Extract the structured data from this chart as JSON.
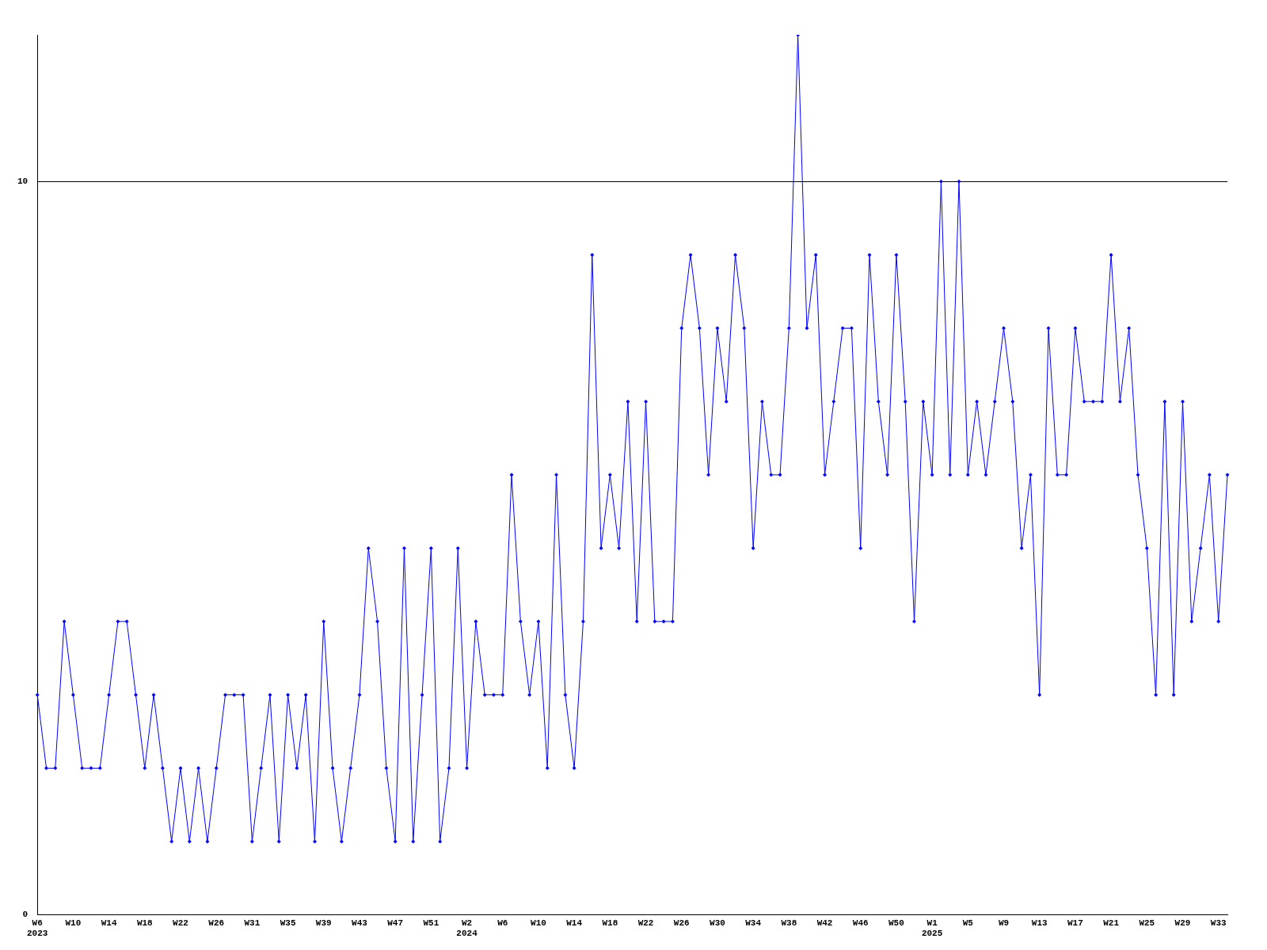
{
  "chart_data": {
    "type": "line",
    "categories": [
      "W6\n2023",
      null,
      null,
      null,
      "W10",
      null,
      null,
      null,
      "W14",
      null,
      null,
      null,
      "W18",
      null,
      null,
      null,
      "W22",
      null,
      null,
      null,
      "W26",
      null,
      null,
      null,
      "W31",
      null,
      null,
      null,
      "W35",
      null,
      null,
      null,
      "W39",
      null,
      null,
      null,
      "W43",
      null,
      null,
      null,
      "W47",
      null,
      null,
      null,
      "W51",
      null,
      null,
      null,
      "W2\n2024",
      null,
      null,
      null,
      "W6",
      null,
      null,
      null,
      "W10",
      null,
      null,
      null,
      "W14",
      null,
      null,
      null,
      "W18",
      null,
      null,
      null,
      "W22",
      null,
      null,
      null,
      "W26",
      null,
      null,
      null,
      "W30",
      null,
      null,
      null,
      "W34",
      null,
      null,
      null,
      "W38",
      null,
      null,
      null,
      "W42",
      null,
      null,
      null,
      "W46",
      null,
      null,
      null,
      "W50",
      null,
      null,
      null,
      "W1\n2025",
      null,
      null,
      null,
      "W5",
      null,
      null,
      null,
      "W9",
      null,
      null,
      null,
      "W13",
      null,
      null,
      null,
      "W17",
      null,
      null,
      null,
      "W21",
      null,
      null,
      null,
      "W25",
      null,
      null,
      null,
      "W29",
      null,
      null,
      null,
      "W33",
      null
    ],
    "series": [
      {
        "color": "#0000ff",
        "values": [
          3,
          2,
          2,
          4,
          3,
          2,
          2,
          2,
          3,
          4,
          4,
          3,
          2,
          3,
          2,
          1,
          2,
          1,
          2,
          1,
          2,
          3,
          3,
          3,
          1,
          2,
          3,
          1,
          3,
          2,
          3,
          1,
          4,
          2,
          1,
          2,
          3,
          5,
          4,
          2,
          1,
          5,
          1,
          3,
          5,
          1,
          2,
          5,
          2,
          4,
          3,
          3,
          3,
          6,
          4,
          3,
          4,
          2,
          6,
          3,
          2,
          4,
          9,
          5,
          6,
          5,
          7,
          4,
          7,
          4,
          4,
          4,
          8,
          9,
          8,
          6,
          8,
          7,
          9,
          8,
          5,
          7,
          6,
          6,
          8,
          12,
          8,
          9,
          6,
          7,
          8,
          8,
          5,
          9,
          7,
          6,
          9,
          7,
          4,
          7,
          6,
          10,
          6,
          10,
          6,
          7,
          6,
          7,
          8,
          7,
          5,
          6,
          3,
          8,
          6,
          6,
          8,
          7,
          7,
          7,
          9,
          7,
          8,
          6,
          5,
          3,
          7,
          3,
          7,
          4,
          5,
          6,
          4,
          6
        ]
      }
    ],
    "ylim": [
      0,
      12
    ],
    "yticks": [
      0,
      10
    ],
    "grid": "y",
    "legend": false,
    "marker": "diamond",
    "line_style": "solid"
  }
}
